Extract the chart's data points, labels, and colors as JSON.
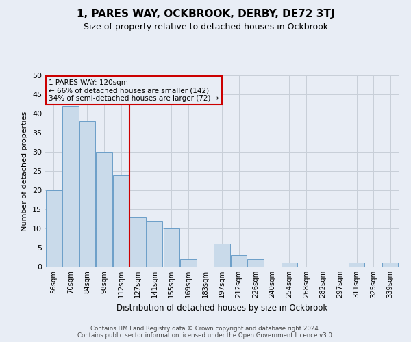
{
  "title": "1, PARES WAY, OCKBROOK, DERBY, DE72 3TJ",
  "subtitle": "Size of property relative to detached houses in Ockbrook",
  "xlabel": "Distribution of detached houses by size in Ockbrook",
  "ylabel": "Number of detached properties",
  "categories": [
    "56sqm",
    "70sqm",
    "84sqm",
    "98sqm",
    "112sqm",
    "127sqm",
    "141sqm",
    "155sqm",
    "169sqm",
    "183sqm",
    "197sqm",
    "212sqm",
    "226sqm",
    "240sqm",
    "254sqm",
    "268sqm",
    "282sqm",
    "297sqm",
    "311sqm",
    "325sqm",
    "339sqm"
  ],
  "values": [
    20,
    42,
    38,
    30,
    24,
    13,
    12,
    10,
    2,
    0,
    6,
    3,
    2,
    0,
    1,
    0,
    0,
    0,
    1,
    0,
    1
  ],
  "bar_color": "#c9daea",
  "bar_edge_color": "#6b9ec8",
  "grid_color": "#c8cfd8",
  "bg_color": "#e8edf5",
  "vline_x": 4.5,
  "vline_color": "#cc0000",
  "annotation_text": "1 PARES WAY: 120sqm\n← 66% of detached houses are smaller (142)\n34% of semi-detached houses are larger (72) →",
  "annotation_box_edge_color": "#cc0000",
  "footer_line1": "Contains HM Land Registry data © Crown copyright and database right 2024.",
  "footer_line2": "Contains public sector information licensed under the Open Government Licence v3.0.",
  "ylim": [
    0,
    50
  ],
  "yticks": [
    0,
    5,
    10,
    15,
    20,
    25,
    30,
    35,
    40,
    45,
    50
  ],
  "title_fontsize": 11,
  "subtitle_fontsize": 9,
  "ylabel_fontsize": 8,
  "xlabel_fontsize": 8.5
}
